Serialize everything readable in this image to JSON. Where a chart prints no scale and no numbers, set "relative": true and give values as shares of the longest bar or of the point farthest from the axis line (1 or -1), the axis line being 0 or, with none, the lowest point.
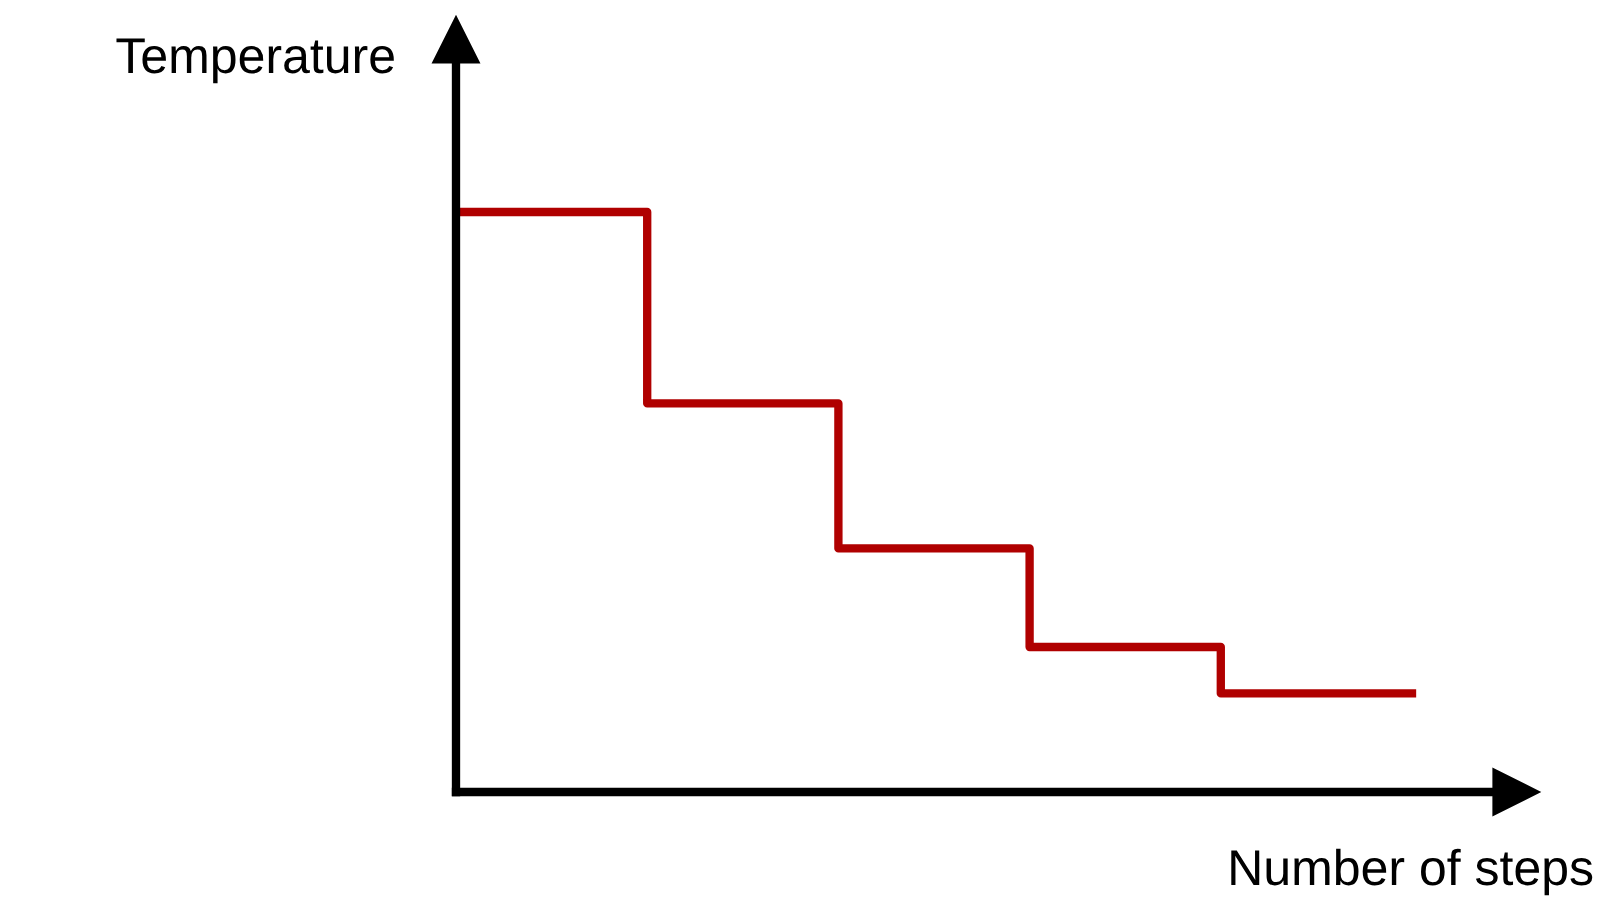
{
  "chart_data": {
    "type": "step",
    "relative": true,
    "xlabel": "Number of steps",
    "ylabel": "Temperature",
    "categories": [
      null,
      null,
      null,
      null,
      null,
      null
    ],
    "series": [
      {
        "color": "#b00000",
        "values": [
          1,
          0.67,
          0.42,
          0.25,
          0.17,
          0.17
        ]
      }
    ],
    "tick_labels": false,
    "legend": false,
    "marker": "none",
    "line_style": "solid"
  }
}
